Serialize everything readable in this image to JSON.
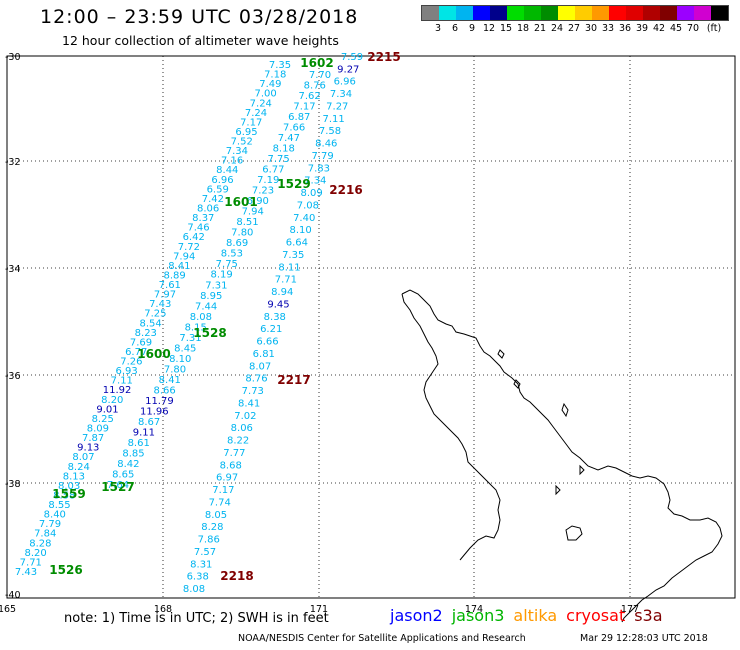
{
  "header": {
    "title": "12:00 – 23:59 UTC 03/28/2018",
    "subtitle": "12 hour collection of altimeter wave heights"
  },
  "legend": {
    "colors": [
      "#808080",
      "#00e5e5",
      "#00b4f0",
      "#0000ff",
      "#00008b",
      "#00dd00",
      "#00b800",
      "#008c00",
      "#ffff00",
      "#ffcc00",
      "#ff9900",
      "#ff0000",
      "#e00000",
      "#b00000",
      "#800000",
      "#9b00ff",
      "#d000d0",
      "#000000"
    ],
    "labels": [
      "3",
      "6",
      "9",
      "12",
      "15",
      "18",
      "21",
      "24",
      "27",
      "30",
      "33",
      "36",
      "39",
      "42",
      "45",
      "70",
      "(ft)"
    ]
  },
  "axes": {
    "lon_labels": [
      "165",
      "168",
      "171",
      "174",
      "177"
    ],
    "lat_labels": [
      "-30",
      "-32",
      "-34",
      "-36",
      "-38",
      "-40"
    ]
  },
  "tracks": [
    {
      "id": "jason2-left",
      "color": "#00b4f0",
      "values": [
        "7.35",
        "7.18",
        "7.49",
        "7.00",
        "7.24",
        "7.24",
        "7.17",
        "6.95",
        "7.52",
        "7.34",
        "7.16",
        "8.44",
        "6.96",
        "6.59",
        "7.42",
        "8.06",
        "8.37",
        "7.46",
        "6.42",
        "7.72",
        "7.94",
        "8.41",
        "8.89",
        "7.61",
        "7.97",
        "7.43",
        "7.25",
        "8.54",
        "8.23",
        "7.69",
        "6.77",
        "7.26",
        "6.93",
        "7.11",
        "11.92",
        "8.20",
        "9.01",
        "8.25",
        "8.09",
        "7.87",
        "9.13",
        "8.07",
        "8.24",
        "8.13",
        "8.03",
        "8.58",
        "8.55",
        "8.40",
        "7.79",
        "7.84",
        "8.28",
        "8.20",
        "7.71",
        "7.43"
      ]
    },
    {
      "id": "jason2-mid",
      "color": "#00b4f0",
      "values": [
        "7.70",
        "8.76",
        "7.62",
        "7.17",
        "6.87",
        "7.66",
        "7.47",
        "8.18",
        "7.75",
        "6.77",
        "7.19",
        "7.23",
        "6.90",
        "7.94",
        "8.51",
        "7.80",
        "8.69",
        "8.53",
        "7.75",
        "8.19",
        "7.31",
        "8.95",
        "7.44",
        "8.08",
        "8.15",
        "7.31",
        "8.45",
        "8.10",
        "7.80",
        "8.41",
        "8.66",
        "11.79",
        "11.96",
        "8.67",
        "9.11",
        "8.61",
        "8.85",
        "8.42",
        "8.65",
        "7.64"
      ]
    },
    {
      "id": "jason2-right",
      "color": "#00b4f0",
      "values": [
        "7.59",
        "9.27",
        "6.96",
        "7.34",
        "7.27",
        "7.11",
        "7.58",
        "8.46",
        "7.79",
        "7.83",
        "7.34",
        "8.09",
        "7.08",
        "7.40",
        "8.10",
        "6.64",
        "7.35",
        "8.11",
        "7.71",
        "8.94",
        "9.45",
        "8.38",
        "6.21",
        "6.66",
        "6.81",
        "8.07",
        "8.76",
        "7.73",
        "8.41",
        "7.02",
        "8.06",
        "8.22",
        "7.77",
        "8.68",
        "6.97",
        "7.17",
        "7.74",
        "8.05",
        "8.28",
        "7.86",
        "7.57",
        "8.31",
        "6.38",
        "8.08"
      ]
    },
    {
      "id": "jason3-times",
      "color": "#008c00",
      "values": [
        "1602",
        "1529",
        "1601",
        "1528",
        "1600",
        "1527",
        "1559",
        "1526"
      ]
    },
    {
      "id": "s3a-times",
      "color": "#800000",
      "values": [
        "2215",
        "2216",
        "2217",
        "2218"
      ]
    }
  ],
  "footer": {
    "note": "note: 1) Time is in UTC; 2) SWH is in feet",
    "satellites": [
      {
        "name": "jason2",
        "color": "#0000ff"
      },
      {
        "name": "jason3",
        "color": "#00b400"
      },
      {
        "name": "altika",
        "color": "#ff9900"
      },
      {
        "name": "cryosat",
        "color": "#ff0000"
      },
      {
        "name": "s3a",
        "color": "#800000"
      }
    ],
    "credit": "NOAA/NESDIS Center for Satellite Applications and Research",
    "timestamp": "Mar 29 12:28:03 UTC 2018"
  }
}
